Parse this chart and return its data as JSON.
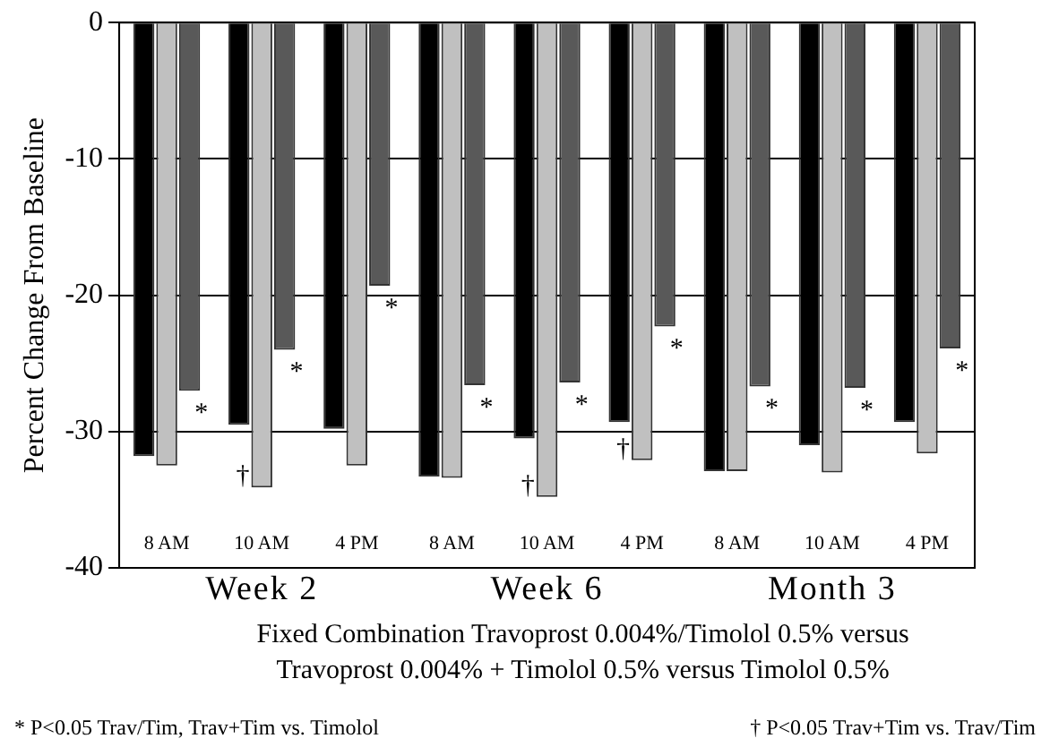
{
  "chart_data": {
    "type": "bar",
    "ylabel": "Percent Change From Baseline",
    "xlabel": "Fixed Combination Travoprost 0.004%/Timolol 0.5% versus Travoprost 0.004% + Timolol 0.5% versus Timolol 0.5%",
    "categories": [
      "8 AM",
      "10 AM",
      "4 PM",
      "8 AM",
      "10 AM",
      "4 PM",
      "8 AM",
      "10 AM",
      "4 PM"
    ],
    "series": [
      {
        "color": "#000000",
        "values": [
          -31.8,
          -29.5,
          -29.8,
          -33.3,
          -30.5,
          -29.3,
          -32.9,
          -31.0,
          -29.3
        ]
      },
      {
        "color": "#c0c0c0",
        "values": [
          -32.5,
          -34.1,
          -32.5,
          -33.4,
          -34.8,
          -32.1,
          -32.9,
          -33.0,
          -31.6
        ],
        "value_labels": [
          null,
          "†",
          null,
          null,
          "†",
          "†",
          null,
          null,
          null
        ]
      },
      {
        "color": "#595959",
        "values": [
          -27.0,
          -24.0,
          -19.3,
          -26.6,
          -26.4,
          -22.3,
          -26.7,
          -26.8,
          -23.9
        ],
        "value_labels": [
          "*",
          "*",
          "*",
          "*",
          "*",
          "*",
          "*",
          "*",
          "*"
        ]
      }
    ],
    "ylim": [
      -40,
      0
    ],
    "yticks": [
      -40,
      -30,
      -20,
      -10,
      0
    ],
    "grid": "y",
    "annotations": [
      "Week 2",
      "Week 6",
      "Month 3",
      "* P<0.05 Trav/Tim, Trav+Tim vs. Timolol",
      "† P<0.05 Trav+Tim vs. Trav/Tim"
    ]
  }
}
